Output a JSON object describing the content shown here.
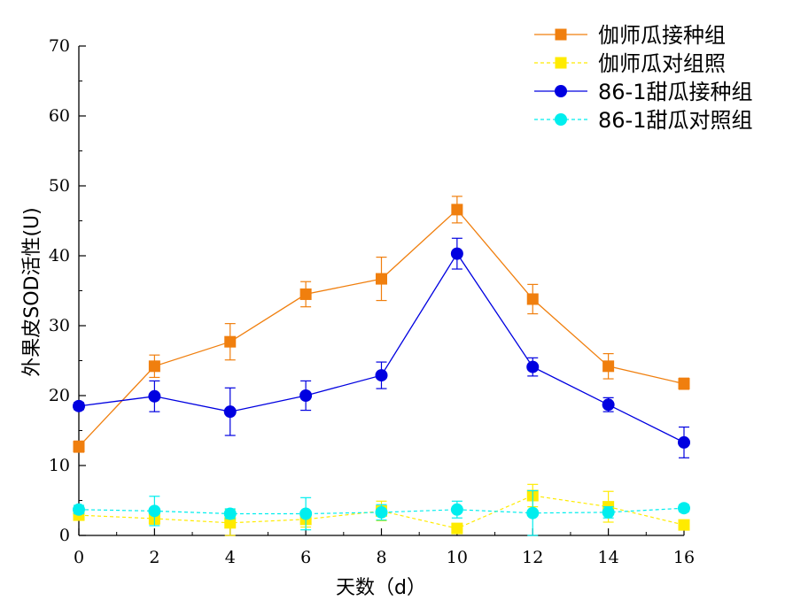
{
  "chart_data": {
    "type": "line",
    "xlabel": "天数（d）",
    "ylabel": "外果皮SOD活性(U)",
    "xlim": [
      0,
      16
    ],
    "ylim": [
      0,
      70
    ],
    "x_ticks": [
      "0",
      "2",
      "4",
      "6",
      "8",
      "10",
      "12",
      "14",
      "16"
    ],
    "y_ticks": [
      "0",
      "10",
      "20",
      "30",
      "40",
      "50",
      "60",
      "70"
    ],
    "grid": false,
    "legend_position": "top-right",
    "series": [
      {
        "name": "伽师瓜接种组",
        "color": "#f07f0e",
        "marker": "square",
        "line_style": "solid",
        "x": [
          0,
          2,
          4,
          6,
          8,
          10,
          12,
          14,
          16
        ],
        "y": [
          12.7,
          24.2,
          27.7,
          34.5,
          36.7,
          46.6,
          33.8,
          24.2,
          21.7
        ],
        "error": [
          0.8,
          1.6,
          2.6,
          1.8,
          3.1,
          1.9,
          2.1,
          1.8,
          0.8
        ]
      },
      {
        "name": "伽师瓜对组照",
        "color": "#ffeb00",
        "marker": "square",
        "line_style": "dashed",
        "x": [
          0,
          2,
          4,
          6,
          8,
          10,
          12,
          14,
          16
        ],
        "y": [
          2.9,
          2.4,
          1.8,
          2.3,
          3.5,
          1.0,
          5.7,
          4.1,
          1.5
        ],
        "error": [
          0.5,
          0.8,
          1.9,
          1.1,
          1.4,
          0.6,
          1.6,
          2.2,
          0.5
        ]
      },
      {
        "name": "86-1甜瓜接种组",
        "color": "#0000e0",
        "marker": "circle",
        "line_style": "solid",
        "x": [
          0,
          2,
          4,
          6,
          8,
          10,
          12,
          14,
          16
        ],
        "y": [
          18.5,
          19.9,
          17.7,
          20.0,
          22.9,
          40.3,
          24.1,
          18.7,
          13.3
        ],
        "error": [
          0.5,
          2.2,
          3.4,
          2.1,
          1.9,
          2.2,
          1.3,
          1.0,
          2.2
        ]
      },
      {
        "name": "86-1甜瓜对照组",
        "color": "#00eeee",
        "marker": "circle",
        "line_style": "dashed",
        "x": [
          0,
          2,
          4,
          6,
          8,
          10,
          12,
          14,
          16
        ],
        "y": [
          3.7,
          3.5,
          3.1,
          3.1,
          3.3,
          3.7,
          3.2,
          3.3,
          3.9
        ],
        "error": [
          0.6,
          2.1,
          0.7,
          2.3,
          1.1,
          1.2,
          3.2,
          0.8,
          0.5
        ]
      }
    ]
  }
}
